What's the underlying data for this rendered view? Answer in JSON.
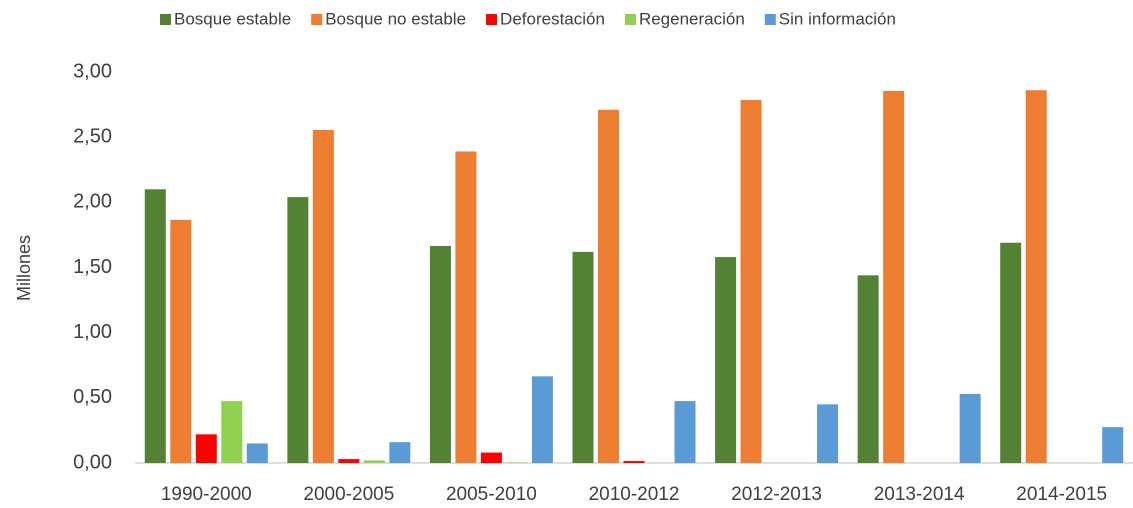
{
  "chart_data": {
    "type": "bar",
    "y_label": "Millones",
    "categories": [
      "1990-2000",
      "2000-2005",
      "2005-2010",
      "2010-2012",
      "2012-2013",
      "2013-2014",
      "2014-2015"
    ],
    "series": [
      {
        "name": "Bosque estable",
        "color": "#548235",
        "values": [
          2.1,
          2.04,
          1.665,
          1.62,
          1.58,
          1.44,
          1.69
        ]
      },
      {
        "name": "Bosque no estable",
        "color": "#ed7d31",
        "values": [
          1.865,
          2.555,
          2.39,
          2.71,
          2.785,
          2.855,
          2.86
        ]
      },
      {
        "name": "Deforestación",
        "color": "#ff0000",
        "values": [
          0.22,
          0.03,
          0.08,
          0.015,
          0,
          0,
          0
        ]
      },
      {
        "name": "Regeneración",
        "color": "#92d050",
        "values": [
          0.475,
          0.02,
          0.005,
          0,
          0,
          0,
          0
        ]
      },
      {
        "name": "Sin información",
        "color": "#5b9bd5",
        "values": [
          0.15,
          0.16,
          0.665,
          0.475,
          0.45,
          0.53,
          0.275
        ]
      }
    ],
    "ylim": [
      0,
      3
    ],
    "yticks": [
      {
        "value": 0,
        "label": "0,00"
      },
      {
        "value": 0.5,
        "label": "0,50"
      },
      {
        "value": 1,
        "label": "1,00"
      },
      {
        "value": 1.5,
        "label": "1,50"
      },
      {
        "value": 2,
        "label": "2,00"
      },
      {
        "value": 2.5,
        "label": "2,50"
      },
      {
        "value": 3,
        "label": "3,00"
      }
    ],
    "legend": "top"
  }
}
